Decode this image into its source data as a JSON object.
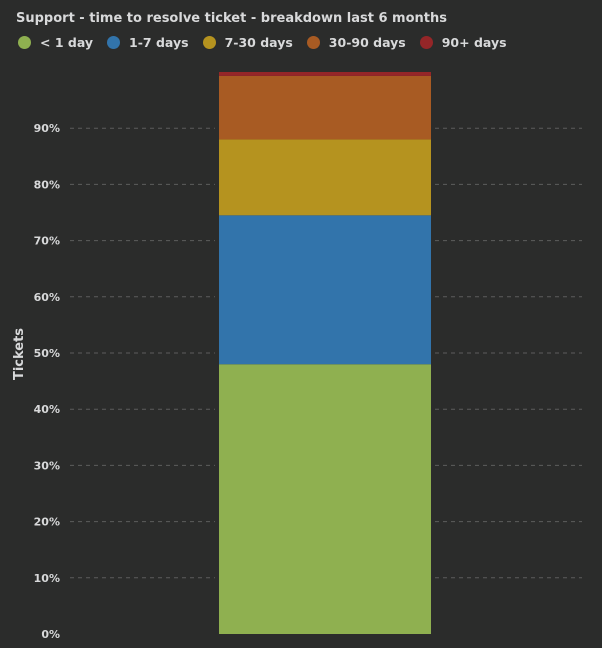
{
  "chart_data": {
    "type": "bar",
    "stacked": true,
    "title": "Support - time to resolve ticket - breakdown last 6 months",
    "ylabel": "Tickets",
    "ylim": [
      0,
      100
    ],
    "y_ticks": [
      "0%",
      "10%",
      "20%",
      "30%",
      "40%",
      "50%",
      "60%",
      "70%",
      "80%",
      "90%"
    ],
    "y_tick_values": [
      0,
      10,
      20,
      30,
      40,
      50,
      60,
      70,
      80,
      90
    ],
    "grid": true,
    "legend_position": "top-left",
    "series": [
      {
        "name": "< 1 day",
        "value": 48,
        "color": "#8fb050"
      },
      {
        "name": "1-7 days",
        "value": 26.5,
        "color": "#3274ab"
      },
      {
        "name": "7-30 days",
        "value": 13.5,
        "color": "#b5931f"
      },
      {
        "name": "30-90 days",
        "value": 11.3,
        "color": "#a85b23"
      },
      {
        "name": "90+ days",
        "value": 0.7,
        "color": "#952628"
      }
    ]
  }
}
